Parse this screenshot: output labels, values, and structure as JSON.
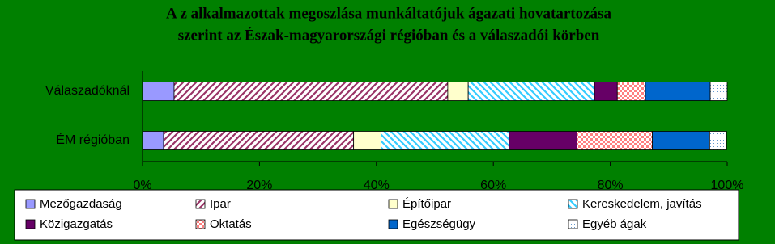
{
  "chart_data": {
    "type": "stacked_barh",
    "title": [
      "A z alkalmazottak megoszlása munkáltatójuk ágazati hovatartozása",
      "szerint az Észak-magyarországi régióban és a válaszadói körben"
    ],
    "categories": [
      "Válaszadóknál",
      "ÉM régióban"
    ],
    "series": [
      {
        "name": "Mezőgazdaság",
        "color": "#9999ff",
        "pattern": "solid",
        "values": [
          5.4,
          3.6
        ]
      },
      {
        "name": "Ipar",
        "color": "#993366",
        "pattern": "diagonal",
        "values": [
          46.8,
          32.5
        ]
      },
      {
        "name": "Építőipar",
        "color": "#ffffcc",
        "pattern": "solid",
        "values": [
          3.5,
          4.7
        ]
      },
      {
        "name": "Kereskedelem, javítás",
        "color": "#33ccff",
        "pattern": "diagonal-reverse",
        "values": [
          21.6,
          21.9
        ]
      },
      {
        "name": "Közigazgatás",
        "color": "#660066",
        "pattern": "solid",
        "values": [
          3.9,
          11.6
        ]
      },
      {
        "name": "Oktatás",
        "color": "#ff8080",
        "pattern": "checker",
        "values": [
          4.8,
          12.9
        ]
      },
      {
        "name": "Egészségügy",
        "color": "#0066cc",
        "pattern": "solid",
        "values": [
          11.1,
          9.8
        ]
      },
      {
        "name": "Egyéb ágak",
        "color": "#6699cc",
        "pattern": "dots",
        "values": [
          2.9,
          2.9
        ]
      }
    ],
    "xlim": [
      0,
      100
    ],
    "xticks": [
      {
        "value": 0,
        "label": "0%"
      },
      {
        "value": 20,
        "label": "20%"
      },
      {
        "value": 40,
        "label": "40%"
      },
      {
        "value": 60,
        "label": "60%"
      },
      {
        "value": 80,
        "label": "80%"
      },
      {
        "value": 100,
        "label": "100%"
      }
    ],
    "legend": "bottom"
  }
}
